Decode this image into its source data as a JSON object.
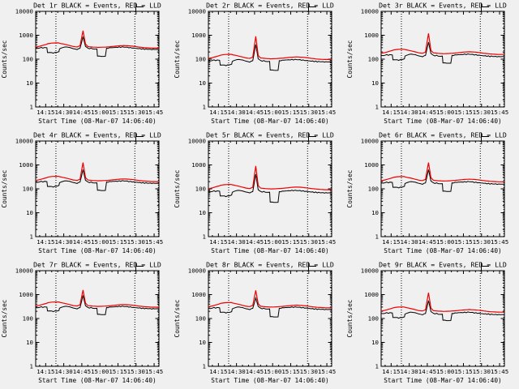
{
  "figure": {
    "background_color": "#f0f0f0",
    "axis_color": "#000000",
    "layout": "3x3 grid of detector lightcurves"
  },
  "chart_data": {
    "type": "line",
    "yscale": "log",
    "xlabel": "Start Time (08-Mar-07 14:06:40)",
    "ylabel": "Counts/sec",
    "xlim": [
      6.7,
      109
    ],
    "ylim": [
      1,
      10000
    ],
    "x_unit": "minutes after 14:00",
    "x_ticks": [
      {
        "t": 15,
        "label": "14:15"
      },
      {
        "t": 30,
        "label": "14:30"
      },
      {
        "t": 45,
        "label": "14:45"
      },
      {
        "t": 60,
        "label": "15:00"
      },
      {
        "t": 75,
        "label": "15:15"
      },
      {
        "t": 90,
        "label": "15:30"
      },
      {
        "t": 105,
        "label": "15:45"
      }
    ],
    "x_minor": [
      10,
      20,
      25,
      35,
      40,
      50,
      55,
      65,
      70,
      80,
      85,
      95,
      100
    ],
    "y_ticks": [
      {
        "v": 1,
        "label": "1"
      },
      {
        "v": 10,
        "label": "10"
      },
      {
        "v": 100,
        "label": "100"
      },
      {
        "v": 1000,
        "label": "1000"
      },
      {
        "v": 10000,
        "label": "10000"
      }
    ],
    "event_lines": [
      23.5,
      89,
      108.5
    ],
    "series_colors": {
      "events": "#000000",
      "lld": "#ee0000"
    },
    "series_legend": [
      {
        "name": "Events",
        "color": "BLACK"
      },
      {
        "name": "LLD",
        "color": "RED"
      }
    ],
    "x": [
      6.7,
      10,
      14,
      16,
      16.5,
      20,
      24,
      26,
      26.5,
      29,
      32,
      35,
      38,
      41,
      43.5,
      46,
      48,
      50,
      54,
      57.5,
      58,
      61,
      64.5,
      65.5,
      68,
      72,
      76,
      80,
      84,
      88,
      92,
      97,
      103,
      109
    ],
    "panels": [
      {
        "det": "1r",
        "title": "Det 1r BLACK = Events, RED = LLD",
        "events": [
          285,
          300,
          300,
          300,
          186,
          180,
          192,
          201,
          270,
          306,
          324,
          309,
          270,
          258,
          285,
          850,
          345,
          285,
          276,
          276,
          135,
          131,
          135,
          279,
          300,
          309,
          318,
          324,
          306,
          291,
          276,
          264,
          255,
          255
        ],
        "lld": [
          320,
          347,
          396,
          422,
          439,
          469,
          479,
          475,
          462,
          436,
          403,
          370,
          337,
          323,
          363,
          1550,
          429,
          337,
          320,
          314,
          310,
          314,
          320,
          323,
          330,
          347,
          363,
          373,
          363,
          347,
          323,
          304,
          290,
          287
        ]
      },
      {
        "det": "2r",
        "title": "Det 2r BLACK = Events, RED = LLD",
        "events": [
          86,
          90,
          90,
          90,
          56,
          54,
          58,
          60,
          81,
          92,
          97,
          93,
          81,
          77,
          86,
          400,
          104,
          86,
          83,
          83,
          35,
          34,
          35,
          84,
          90,
          93,
          95,
          97,
          92,
          87,
          83,
          79,
          77,
          77
        ],
        "lld": [
          107,
          116,
          132,
          141,
          146,
          156,
          160,
          158,
          154,
          145,
          134,
          123,
          112,
          108,
          121,
          900,
          143,
          112,
          107,
          105,
          103,
          105,
          107,
          108,
          110,
          116,
          121,
          124,
          121,
          116,
          108,
          101,
          97,
          96
        ]
      },
      {
        "det": "3r",
        "title": "Det 3r BLACK = Events, RED = LLD",
        "events": [
          143,
          150,
          150,
          150,
          93,
          90,
          96,
          101,
          135,
          153,
          162,
          155,
          135,
          129,
          143,
          500,
          173,
          143,
          138,
          138,
          70,
          68,
          70,
          140,
          150,
          155,
          159,
          162,
          153,
          146,
          138,
          132,
          128,
          128
        ],
        "lld": [
          175,
          189,
          216,
          230,
          239,
          256,
          261,
          259,
          252,
          238,
          220,
          202,
          184,
          176,
          198,
          1200,
          234,
          184,
          175,
          171,
          169,
          171,
          175,
          176,
          180,
          189,
          198,
          203,
          198,
          189,
          176,
          166,
          158,
          157
        ]
      },
      {
        "det": "4r",
        "title": "Det 4r BLACK = Events, RED = LLD",
        "events": [
          190,
          200,
          200,
          200,
          124,
          120,
          128,
          134,
          180,
          204,
          216,
          206,
          180,
          172,
          190,
          620,
          230,
          190,
          184,
          184,
          88,
          85,
          88,
          186,
          200,
          206,
          212,
          216,
          204,
          194,
          184,
          176,
          170,
          170
        ],
        "lld": [
          223,
          242,
          276,
          294,
          306,
          327,
          334,
          331,
          322,
          304,
          281,
          258,
          235,
          225,
          253,
          1250,
          299,
          235,
          223,
          219,
          216,
          219,
          223,
          225,
          230,
          242,
          253,
          260,
          253,
          242,
          225,
          212,
          202,
          200
        ]
      },
      {
        "det": "5r",
        "title": "Det 5r BLACK = Events, RED = LLD",
        "events": [
          76,
          80,
          80,
          80,
          50,
          48,
          51,
          54,
          72,
          82,
          86,
          82,
          72,
          69,
          76,
          400,
          92,
          76,
          74,
          74,
          28,
          27,
          28,
          74,
          80,
          82,
          85,
          86,
          82,
          78,
          74,
          70,
          68,
          68
        ],
        "lld": [
          102,
          110,
          126,
          134,
          140,
          149,
          152,
          151,
          147,
          139,
          128,
          118,
          107,
          103,
          116,
          900,
          137,
          107,
          102,
          100,
          99,
          100,
          102,
          103,
          105,
          110,
          116,
          119,
          116,
          110,
          103,
          97,
          92,
          91
        ]
      },
      {
        "det": "6r",
        "title": "Det 6r BLACK = Events, RED = LLD",
        "events": [
          176,
          185,
          185,
          185,
          115,
          111,
          118,
          124,
          167,
          189,
          200,
          191,
          167,
          159,
          176,
          620,
          213,
          176,
          170,
          170,
          80,
          78,
          80,
          172,
          185,
          191,
          196,
          200,
          189,
          179,
          170,
          163,
          157,
          157
        ],
        "lld": [
          218,
          236,
          270,
          288,
          299,
          320,
          326,
          324,
          315,
          297,
          275,
          252,
          230,
          221,
          248,
          1250,
          293,
          230,
          218,
          214,
          212,
          214,
          218,
          221,
          225,
          236,
          248,
          254,
          248,
          236,
          221,
          207,
          198,
          196
        ]
      },
      {
        "det": "7r",
        "title": "Det 7r BLACK = Events, RED = LLD",
        "events": [
          285,
          300,
          300,
          300,
          205,
          198,
          205,
          210,
          270,
          306,
          324,
          309,
          270,
          258,
          285,
          900,
          345,
          285,
          276,
          276,
          150,
          146,
          150,
          279,
          300,
          309,
          318,
          324,
          306,
          291,
          276,
          264,
          255,
          255
        ],
        "lld": [
          330,
          357,
          408,
          435,
          452,
          483,
          493,
          490,
          476,
          449,
          415,
          381,
          347,
          333,
          374,
          1550,
          442,
          347,
          330,
          323,
          320,
          323,
          330,
          333,
          340,
          357,
          374,
          384,
          374,
          357,
          333,
          313,
          299,
          296
        ]
      },
      {
        "det": "8r",
        "title": "Det 8r BLACK = Events, RED = LLD",
        "events": [
          266,
          280,
          280,
          280,
          180,
          174,
          179,
          188,
          252,
          286,
          302,
          288,
          252,
          241,
          266,
          700,
          322,
          266,
          258,
          258,
          120,
          116,
          120,
          260,
          280,
          288,
          297,
          302,
          286,
          272,
          258,
          246,
          238,
          238
        ],
        "lld": [
          310,
          336,
          384,
          410,
          426,
          454,
          464,
          461,
          448,
          422,
          390,
          358,
          326,
          314,
          352,
          1500,
          416,
          326,
          310,
          304,
          301,
          304,
          310,
          314,
          320,
          336,
          352,
          362,
          352,
          336,
          314,
          294,
          282,
          278
        ]
      },
      {
        "det": "9r",
        "title": "Det 9r BLACK = Events, RED = LLD",
        "events": [
          162,
          170,
          170,
          170,
          110,
          105,
          109,
          114,
          153,
          173,
          184,
          175,
          153,
          146,
          162,
          550,
          196,
          162,
          156,
          156,
          85,
          82,
          85,
          158,
          170,
          175,
          180,
          184,
          173,
          165,
          156,
          150,
          145,
          145
        ],
        "lld": [
          204,
          221,
          252,
          269,
          279,
          298,
          305,
          302,
          294,
          277,
          256,
          235,
          214,
          206,
          231,
          1200,
          273,
          214,
          204,
          200,
          197,
          200,
          204,
          206,
          210,
          221,
          231,
          237,
          231,
          221,
          206,
          193,
          185,
          183
        ]
      }
    ]
  }
}
